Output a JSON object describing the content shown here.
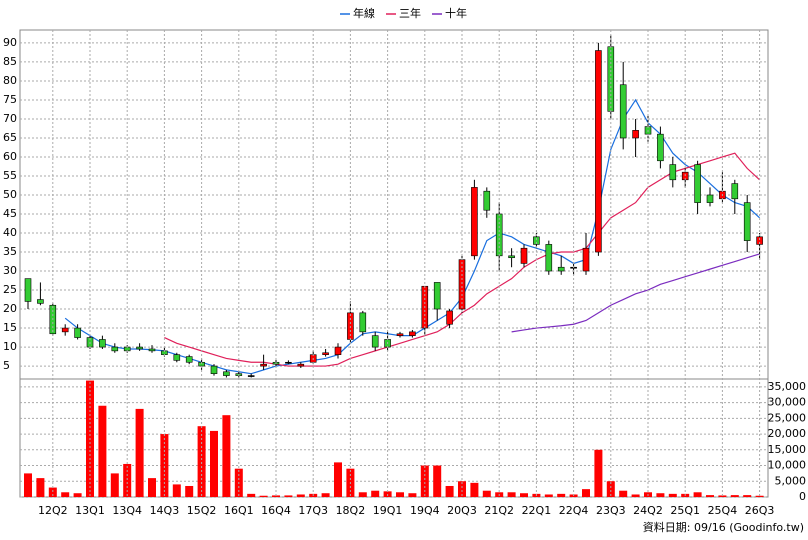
{
  "chart_data": [
    {
      "type": "candlestick",
      "legend": [
        "年線",
        "三年",
        "十年"
      ],
      "up_color": "#ff0000",
      "down_color": "#33cc33",
      "open": [
        28,
        22.5,
        21,
        14,
        15,
        12.5,
        12,
        10,
        10,
        10,
        9.5,
        9,
        8,
        7.5,
        6,
        5,
        3.5,
        3,
        2.5,
        5,
        6,
        6,
        5,
        6,
        8,
        8,
        12,
        19,
        13,
        12,
        13,
        13,
        15,
        27,
        16,
        20,
        34,
        51,
        45,
        34,
        32,
        39,
        37,
        31,
        31,
        30,
        35,
        89,
        79,
        65,
        68,
        66,
        58,
        54,
        58,
        50,
        49,
        53,
        48,
        37
      ],
      "high": [
        28,
        27,
        21.5,
        16,
        16,
        13,
        13,
        11,
        10.5,
        11,
        10.5,
        10,
        8.5,
        8,
        7,
        5.5,
        4,
        3.5,
        3,
        8,
        7,
        6.5,
        6,
        9,
        9.5,
        11,
        22,
        19.5,
        14,
        14,
        14,
        14.5,
        26,
        27,
        20,
        34,
        54,
        52,
        48,
        36,
        37,
        40,
        38,
        34,
        32,
        40,
        90,
        92,
        85,
        70,
        71,
        68,
        60,
        57,
        59,
        52,
        56,
        54,
        50,
        40
      ],
      "low": [
        20,
        21,
        13,
        13,
        12,
        9.5,
        9.5,
        8.5,
        8.5,
        9,
        8.5,
        7.5,
        6,
        5.5,
        4,
        2.5,
        2,
        2,
        2,
        4,
        5,
        5.5,
        4.5,
        5.5,
        7.5,
        7,
        11,
        13,
        9,
        9,
        12.5,
        12.5,
        13,
        17,
        15,
        19,
        33,
        44,
        30,
        31,
        31,
        36,
        29,
        29,
        29,
        29,
        34,
        70,
        62,
        60,
        64,
        57,
        52,
        52,
        45,
        47,
        48,
        45,
        35,
        33
      ],
      "close": [
        22,
        21.5,
        13.5,
        15,
        12.5,
        10,
        10,
        9,
        9,
        9.5,
        9,
        8,
        6.5,
        6,
        5,
        3,
        2.5,
        2.5,
        2.5,
        5.5,
        5.5,
        6,
        5.5,
        8,
        8.5,
        10,
        19,
        14,
        10,
        10,
        13.5,
        14,
        26,
        20,
        19.5,
        33,
        52,
        46,
        34,
        33.5,
        36,
        37,
        30,
        30,
        31,
        36,
        88,
        72,
        65,
        67,
        66,
        59,
        54,
        56,
        48,
        48,
        51,
        49,
        38,
        39
      ],
      "series": [
        {
          "name": "年線",
          "color": "#1a6fdf",
          "values": [
            null,
            null,
            null,
            17.6,
            15,
            13,
            11,
            10,
            9.5,
            9.5,
            9.3,
            9,
            8,
            7,
            6,
            5,
            4,
            3.5,
            3,
            4,
            5,
            5.5,
            6,
            6.5,
            7,
            8,
            11,
            13.5,
            14,
            13.5,
            13,
            13,
            15,
            17,
            19,
            23,
            30,
            38,
            40,
            39,
            37,
            36,
            35,
            34,
            32,
            33,
            46,
            62,
            70,
            75,
            69,
            66,
            61,
            58,
            56,
            53,
            50,
            48,
            47,
            44
          ]
        },
        {
          "name": "三年",
          "color": "#e0205a",
          "values": [
            null,
            null,
            null,
            null,
            null,
            null,
            null,
            null,
            null,
            null,
            null,
            12.5,
            11,
            10,
            9,
            8,
            7,
            6.5,
            6,
            6,
            5.5,
            5,
            5,
            5,
            5,
            5.5,
            7,
            8,
            9,
            10,
            11,
            12,
            13,
            14,
            16,
            19,
            21,
            24,
            26,
            28,
            31,
            33,
            34.5,
            35,
            35,
            36,
            40,
            44,
            46,
            48,
            52,
            54,
            56,
            57,
            58,
            59,
            60,
            61,
            57,
            54
          ]
        },
        {
          "name": "十年",
          "color": "#7b2cbf",
          "values": [
            null,
            null,
            null,
            null,
            null,
            null,
            null,
            null,
            null,
            null,
            null,
            null,
            null,
            null,
            null,
            null,
            null,
            null,
            null,
            null,
            null,
            null,
            null,
            null,
            null,
            null,
            null,
            null,
            null,
            null,
            null,
            null,
            null,
            null,
            null,
            null,
            null,
            null,
            null,
            14,
            14.5,
            15,
            15.3,
            15.6,
            16,
            17,
            19,
            21,
            22.5,
            24,
            25,
            26.5,
            27.5,
            28.5,
            29.5,
            30.5,
            31.5,
            32.5,
            33.5,
            34.5
          ]
        }
      ],
      "ylim": [
        1.6,
        93.4
      ],
      "yticks": [
        5,
        10,
        15,
        20,
        25,
        30,
        35,
        40,
        45,
        50,
        55,
        60,
        65,
        70,
        75,
        80,
        85,
        90
      ],
      "grid": true
    },
    {
      "type": "bar",
      "color": "#ff0000",
      "categories": [
        null,
        null,
        "12Q2",
        null,
        null,
        "13Q1",
        null,
        null,
        "13Q4",
        null,
        null,
        "14Q3",
        null,
        null,
        "15Q2",
        null,
        null,
        "16Q1",
        null,
        null,
        "16Q4",
        null,
        null,
        "17Q3",
        null,
        null,
        "18Q2",
        null,
        null,
        "19Q1",
        null,
        null,
        "19Q4",
        null,
        null,
        "20Q3",
        null,
        null,
        "21Q2",
        null,
        null,
        "22Q1",
        null,
        null,
        "22Q4",
        null,
        null,
        "23Q3",
        null,
        null,
        "24Q2",
        null,
        null,
        "25Q1",
        null,
        null,
        "25Q4",
        null,
        null,
        "26Q3"
      ],
      "values": [
        7500,
        6000,
        3000,
        1500,
        1200,
        37000,
        29000,
        7500,
        10500,
        28000,
        6000,
        20000,
        4000,
        3500,
        22500,
        21000,
        26000,
        9000,
        1000,
        400,
        500,
        500,
        800,
        1000,
        1200,
        11000,
        9000,
        1500,
        2000,
        1800,
        1500,
        1200,
        10000,
        10000,
        3500,
        5000,
        4500,
        2000,
        1500,
        1500,
        1200,
        1000,
        800,
        1000,
        800,
        2500,
        15000,
        5000,
        2000,
        800,
        1500,
        1200,
        1000,
        1000,
        1500,
        600,
        500,
        600,
        600,
        400
      ],
      "ylim": [
        0,
        37500
      ],
      "yticks": [
        {
          "value": 0,
          "label": "0"
        },
        {
          "value": 5000,
          "label": "5,000"
        },
        {
          "value": 10000,
          "label": "10,000"
        },
        {
          "value": 15000,
          "label": "15,000"
        },
        {
          "value": 20000,
          "label": "20,000"
        },
        {
          "value": 25000,
          "label": "25,000"
        },
        {
          "value": 30000,
          "label": "30,000"
        },
        {
          "value": 35000,
          "label": "35,000"
        }
      ],
      "grid": true
    }
  ],
  "footer": "資料日期: 09/16 (Goodinfo.tw)"
}
